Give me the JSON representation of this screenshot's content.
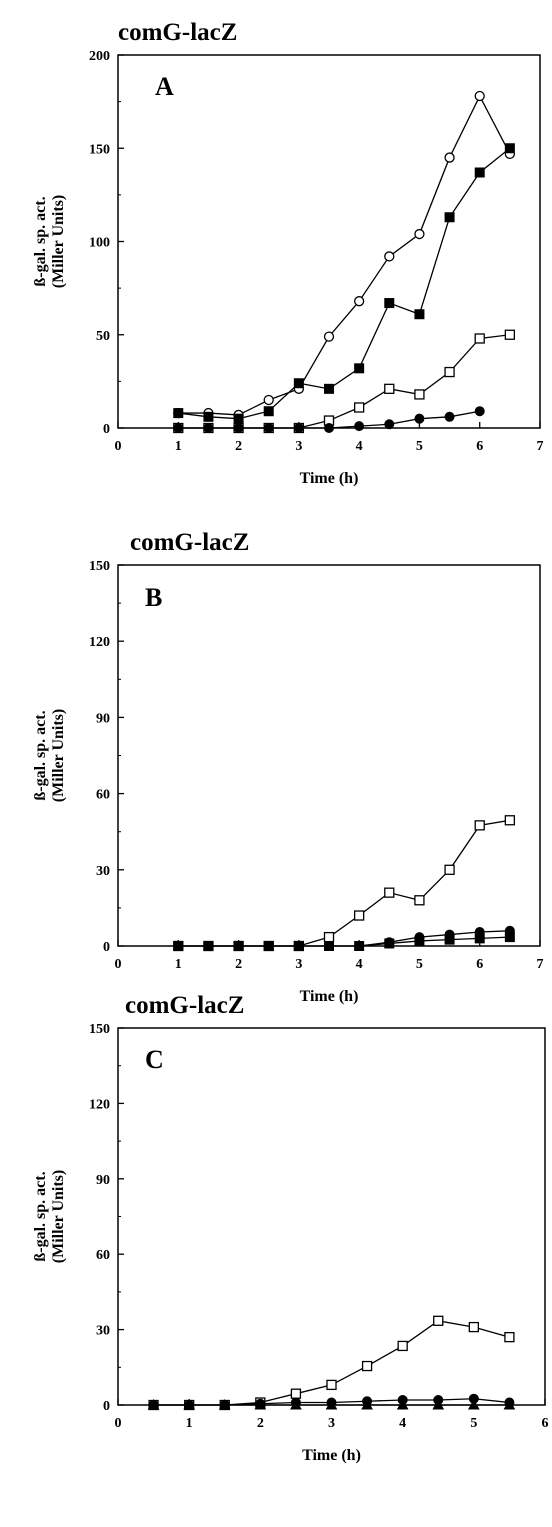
{
  "charts": [
    {
      "title": "comG-lacZ",
      "panel_label": "A",
      "xlabel": "Time (h)",
      "ylabel_line1": "ß-gal. sp. act.",
      "ylabel_line2": "(Miller Units)",
      "xlim": [
        0,
        7
      ],
      "ylim": [
        0,
        200
      ],
      "x_ticks": [
        0,
        1,
        2,
        3,
        4,
        5,
        6,
        7
      ],
      "y_ticks": [
        0,
        50,
        100,
        150,
        200
      ],
      "series": [
        {
          "marker": "open-circle",
          "x": [
            1,
            1.5,
            2,
            2.5,
            3,
            3.5,
            4,
            4.5,
            5,
            5.5,
            6,
            6.5
          ],
          "y": [
            8,
            8,
            7,
            15,
            21,
            49,
            68,
            92,
            104,
            145,
            178,
            147
          ]
        },
        {
          "marker": "filled-square",
          "x": [
            1,
            1.5,
            2,
            2.5,
            3,
            3.5,
            4,
            4.5,
            5,
            5.5,
            6,
            6.5
          ],
          "y": [
            8,
            6,
            5,
            9,
            24,
            21,
            32,
            67,
            61,
            113,
            137,
            150
          ]
        },
        {
          "marker": "open-square",
          "x": [
            1,
            1.5,
            2,
            2.5,
            3,
            3.5,
            4,
            4.5,
            5,
            5.5,
            6,
            6.5
          ],
          "y": [
            0,
            0,
            0,
            0,
            0,
            4,
            11,
            21,
            18,
            30,
            48,
            50
          ]
        },
        {
          "marker": "filled-circle",
          "x": [
            1,
            1.5,
            2,
            2.5,
            3,
            3.5,
            4,
            4.5,
            5,
            5.5,
            6
          ],
          "y": [
            0,
            0,
            0,
            0,
            0,
            0,
            1,
            2,
            5,
            6,
            9
          ]
        }
      ]
    },
    {
      "title": "comG-lacZ",
      "panel_label": "B",
      "xlabel": "Time (h)",
      "ylabel_line1": "ß-gal. sp. act.",
      "ylabel_line2": "(Miller Units)",
      "xlim": [
        0,
        7
      ],
      "ylim": [
        0,
        150
      ],
      "x_ticks": [
        0,
        1,
        2,
        3,
        4,
        5,
        6,
        7
      ],
      "y_ticks": [
        0,
        30,
        60,
        90,
        120,
        150
      ],
      "series": [
        {
          "marker": "open-square",
          "x": [
            1,
            1.5,
            2,
            2.5,
            3,
            3.5,
            4,
            4.5,
            5,
            5.5,
            6,
            6.5
          ],
          "y": [
            0,
            0,
            0,
            0,
            0,
            3.5,
            12,
            21,
            18,
            30,
            47.5,
            49.5
          ]
        },
        {
          "marker": "filled-circle",
          "x": [
            1,
            1.5,
            2,
            2.5,
            3,
            3.5,
            4,
            4.5,
            5,
            5.5,
            6,
            6.5
          ],
          "y": [
            0,
            0,
            0,
            0,
            0,
            0,
            0,
            1.5,
            3.5,
            4.5,
            5.5,
            6
          ]
        },
        {
          "marker": "filled-square",
          "x": [
            1,
            1.5,
            2,
            2.5,
            3,
            3.5,
            4,
            4.5,
            5,
            5.5,
            6,
            6.5
          ],
          "y": [
            0,
            0,
            0,
            0,
            0,
            0,
            0,
            1,
            2,
            2.5,
            3,
            3.5
          ]
        }
      ]
    },
    {
      "title": "comG-lacZ",
      "panel_label": "C",
      "xlabel": "Time (h)",
      "ylabel_line1": "ß-gal. sp. act.",
      "ylabel_line2": "(Miller Units)",
      "xlim": [
        0,
        6
      ],
      "ylim": [
        0,
        150
      ],
      "x_ticks": [
        0,
        1,
        2,
        3,
        4,
        5,
        6
      ],
      "y_ticks": [
        0,
        30,
        60,
        90,
        120,
        150
      ],
      "series": [
        {
          "marker": "open-square",
          "x": [
            0.5,
            1,
            1.5,
            2,
            2.5,
            3,
            3.5,
            4,
            4.5,
            5,
            5.5
          ],
          "y": [
            0,
            0,
            0,
            1,
            4.5,
            8,
            15.5,
            23.5,
            33.5,
            31,
            27
          ]
        },
        {
          "marker": "filled-circle",
          "x": [
            0.5,
            1,
            1.5,
            2,
            2.5,
            3,
            3.5,
            4,
            4.5,
            5,
            5.5
          ],
          "y": [
            0,
            0,
            0,
            0.5,
            1,
            1,
            1.5,
            2,
            2,
            2.5,
            1
          ]
        },
        {
          "marker": "filled-triangle",
          "x": [
            0.5,
            1,
            1.5,
            2,
            2.5,
            3,
            3.5,
            4,
            4.5,
            5,
            5.5
          ],
          "y": [
            0,
            0,
            0,
            0,
            0,
            0,
            0,
            0,
            0,
            0,
            0
          ]
        }
      ]
    }
  ]
}
